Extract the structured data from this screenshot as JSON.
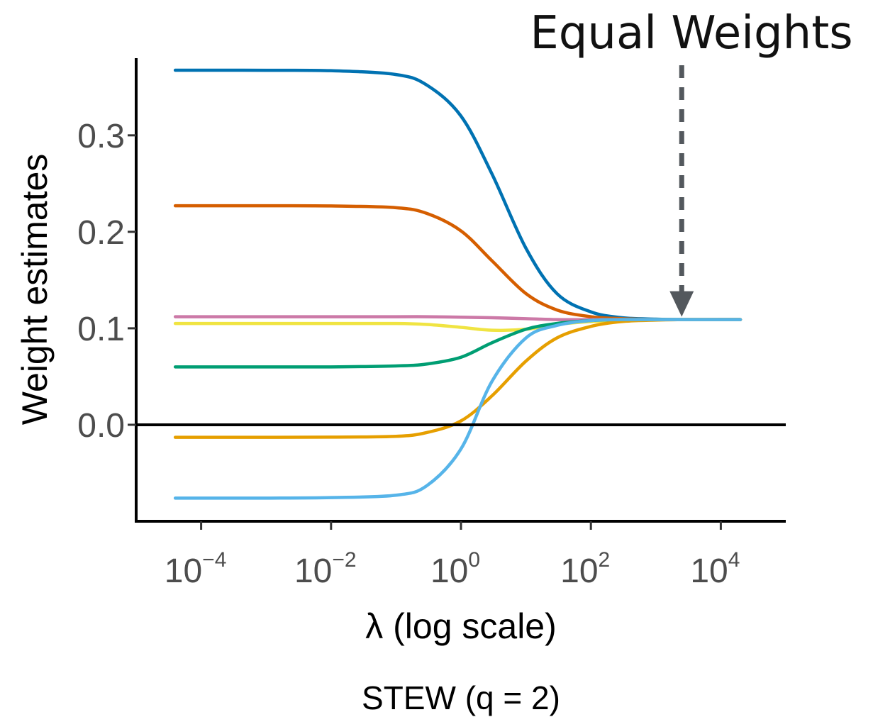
{
  "chart_data": {
    "type": "line",
    "x_scale": "log10",
    "xlabel": "λ (log scale)",
    "ylabel": "Weight estimates",
    "caption": "STEW (q = 2)",
    "annotation": {
      "text": "Equal Weights",
      "arrow_x": 2500,
      "arrow_y": 0.109
    },
    "xlim": [
      1e-05,
      100000
    ],
    "ylim": [
      -0.1,
      0.38
    ],
    "x_ticks": [
      {
        "value": 0.0001,
        "base": "10",
        "exp": "−4"
      },
      {
        "value": 0.01,
        "base": "10",
        "exp": "−2"
      },
      {
        "value": 1,
        "base": "10",
        "exp": "0"
      },
      {
        "value": 100,
        "base": "10",
        "exp": "2"
      },
      {
        "value": 10000,
        "base": "10",
        "exp": "4"
      }
    ],
    "y_ticks": [
      {
        "value": 0.0,
        "label": "0.0"
      },
      {
        "value": 0.1,
        "label": "0.1"
      },
      {
        "value": 0.2,
        "label": "0.2"
      },
      {
        "value": 0.3,
        "label": "0.3"
      }
    ],
    "reference_line_y": 0.0,
    "grid": false,
    "legend": "none",
    "x": [
      4e-05,
      0.0001,
      0.001,
      0.01,
      0.1,
      0.3,
      1,
      3,
      10,
      30,
      100,
      300,
      1000,
      3000,
      10000,
      20000
    ],
    "series": [
      {
        "color": "#0072B2",
        "values": [
          0.3675,
          0.3675,
          0.3674,
          0.367,
          0.363,
          0.352,
          0.32,
          0.26,
          0.183,
          0.136,
          0.117,
          0.111,
          0.1095,
          0.109,
          0.109,
          0.109
        ]
      },
      {
        "color": "#D55E00",
        "values": [
          0.227,
          0.227,
          0.227,
          0.2268,
          0.225,
          0.219,
          0.201,
          0.17,
          0.136,
          0.119,
          0.112,
          0.11,
          0.109,
          0.109,
          0.109,
          0.109
        ]
      },
      {
        "color": "#CC79A7",
        "values": [
          0.112,
          0.112,
          0.112,
          0.112,
          0.112,
          0.112,
          0.1115,
          0.111,
          0.11,
          0.109,
          0.109,
          0.109,
          0.109,
          0.109,
          0.109,
          0.109
        ]
      },
      {
        "color": "#F0E442",
        "values": [
          0.105,
          0.105,
          0.105,
          0.105,
          0.105,
          0.104,
          0.101,
          0.098,
          0.099,
          0.104,
          0.107,
          0.108,
          0.109,
          0.109,
          0.109,
          0.109
        ]
      },
      {
        "color": "#009E73",
        "values": [
          0.06,
          0.06,
          0.06,
          0.06,
          0.061,
          0.063,
          0.07,
          0.085,
          0.099,
          0.105,
          0.108,
          0.109,
          0.109,
          0.109,
          0.109,
          0.109
        ]
      },
      {
        "color": "#E69F00",
        "values": [
          -0.013,
          -0.013,
          -0.013,
          -0.0128,
          -0.012,
          -0.008,
          0.004,
          0.03,
          0.066,
          0.09,
          0.102,
          0.107,
          0.1085,
          0.109,
          0.109,
          0.109
        ]
      },
      {
        "color": "#56B4E9",
        "values": [
          -0.076,
          -0.076,
          -0.076,
          -0.0755,
          -0.073,
          -0.063,
          -0.025,
          0.045,
          0.09,
          0.103,
          0.108,
          0.109,
          0.109,
          0.109,
          0.109,
          0.109
        ]
      }
    ]
  }
}
